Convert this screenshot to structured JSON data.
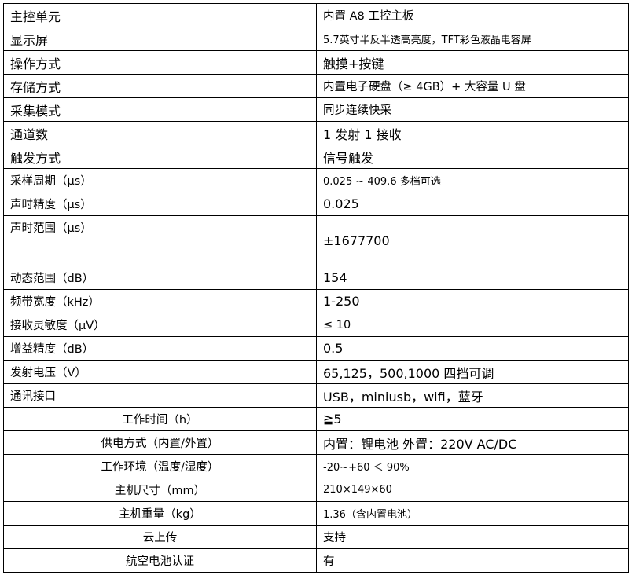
{
  "rows": [
    {
      "label": "主控单元",
      "value": "内置 A8 工控主板"
    },
    {
      "label": "显示屏",
      "value": "5.7英寸半反半透高亮度，TFT彩色液晶电容屏"
    },
    {
      "label": "操作方式",
      "value": "触摸+按键"
    },
    {
      "label": "存储方式",
      "value": "内置电子硬盘（≥ 4GB）+ 大容量 U 盘"
    },
    {
      "label": "采集模式",
      "value": "同步连续快采"
    },
    {
      "label": "通道数",
      "value": "1 发射 1 接收"
    },
    {
      "label": "触发方式",
      "value": "信号触发"
    },
    {
      "label": "采样周期（μs）",
      "value": "0.025 ~ 409.6 多档可选"
    },
    {
      "label": "声时精度（μs）",
      "value": "0.025"
    },
    {
      "label": "声时范围（μs）",
      "value": "±1677700"
    },
    {
      "label": "动态范围（dB）",
      "value": "154"
    },
    {
      "label": "频带宽度（kHz）",
      "value": "1-250"
    },
    {
      "label": "接收灵敏度（μV）",
      "value": "≤ 10"
    },
    {
      "label": "增益精度（dB）",
      "value": "0.5"
    },
    {
      "label": "发射电压（V）",
      "value": "65,125，500,1000 四挡可调"
    },
    {
      "label": "通讯接口",
      "value": "USB，miniusb，wifi，蓝牙"
    },
    {
      "label": "工作时间（h）",
      "value": "≧5"
    },
    {
      "label": "供电方式（内置/外置）",
      "value": "内置：锂电池 外置：220V AC/DC"
    },
    {
      "label": "工作环境（温度/湿度）",
      "value": "-20~+60 ＜ 90%"
    },
    {
      "label": "主机尺寸（mm）",
      "value": "210×149×60"
    },
    {
      "label": "主机重量（kg）",
      "value": "1.36（含内置电池）"
    },
    {
      "label": "云上传",
      "value": "支持"
    },
    {
      "label": "航空电池认证",
      "value": "有"
    }
  ]
}
